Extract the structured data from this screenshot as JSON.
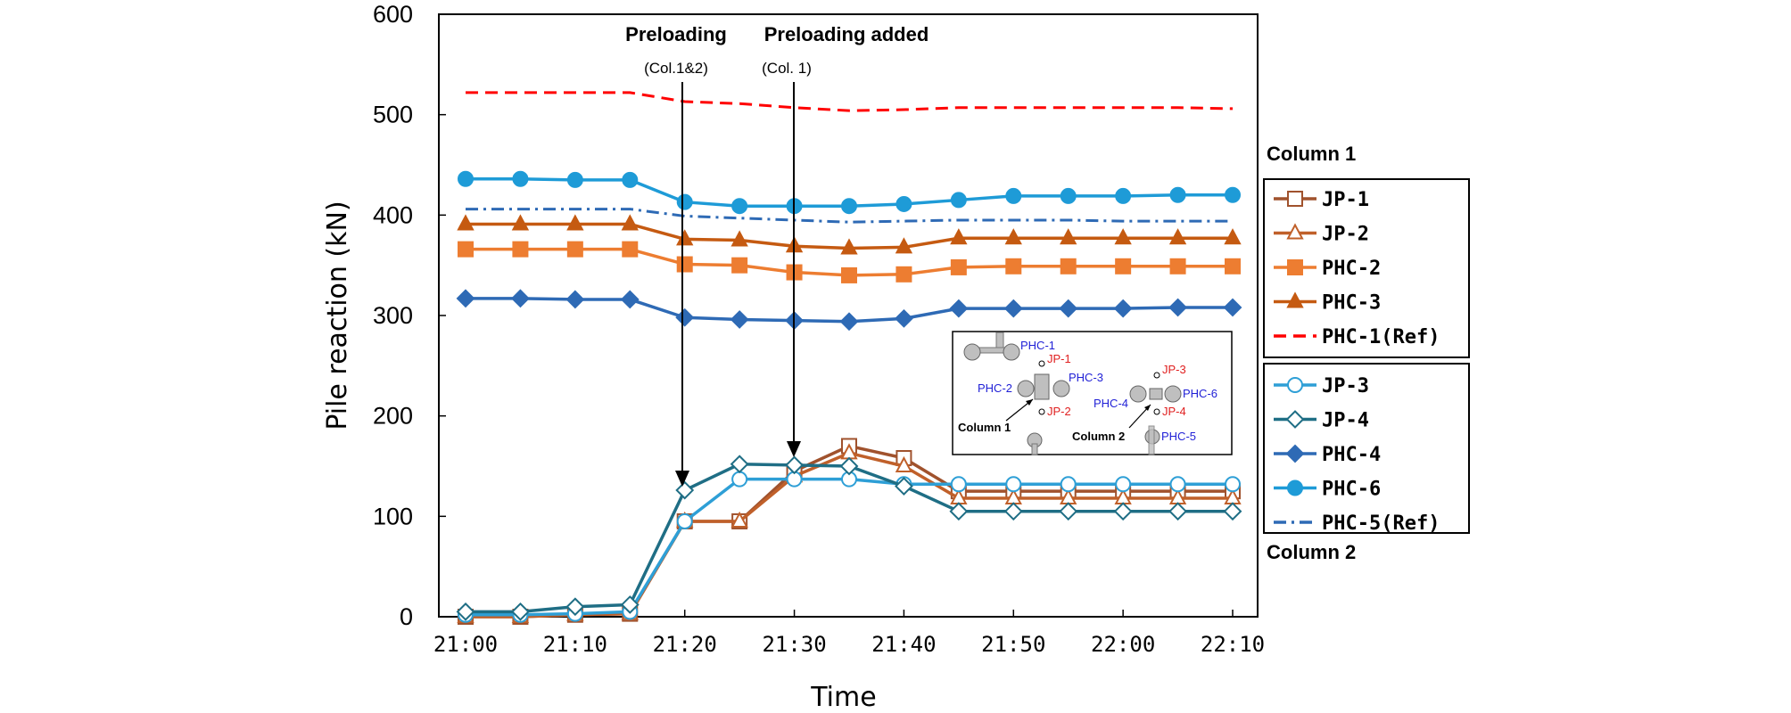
{
  "chart_data": {
    "type": "line",
    "xlabel": "Time",
    "ylabel": "Pile reaction (kN)",
    "ylim": [
      0,
      600
    ],
    "yticks": [
      "0",
      "100",
      "200",
      "300",
      "400",
      "500",
      "600"
    ],
    "xtick_labels": [
      "21:00",
      "21:10",
      "21:20",
      "21:30",
      "21:40",
      "21:50",
      "22:00",
      "22:10"
    ],
    "x": [
      "21:00",
      "21:05",
      "21:10",
      "21:15",
      "21:20",
      "21:25",
      "21:30",
      "21:35",
      "21:40",
      "21:45",
      "21:50",
      "21:55",
      "22:00",
      "22:05",
      "22:10"
    ],
    "grid": false,
    "annotations": [
      {
        "title": "Preloading",
        "subtitle": "(Col.1&2)",
        "time": "21:20",
        "arrow_to": 125
      },
      {
        "title": "Preloading added",
        "subtitle": "(Col. 1)",
        "time": "21:30",
        "arrow_to": 150
      }
    ],
    "legend_groups": [
      {
        "title": "Column 1",
        "items": [
          "JP-1",
          "JP-2",
          "PHC-2",
          "PHC-3",
          "PHC-1(Ref)"
        ]
      },
      {
        "title": "Column 2",
        "items": [
          "JP-3",
          "JP-4",
          "PHC-4",
          "PHC-6",
          "PHC-5(Ref)"
        ]
      }
    ],
    "series": [
      {
        "name": "JP-1",
        "color": "#a0522d",
        "marker": "square-open",
        "line": "solid",
        "values": [
          0,
          0,
          2,
          3,
          95,
          95,
          145,
          170,
          158,
          125,
          125,
          125,
          125,
          125,
          125
        ]
      },
      {
        "name": "JP-2",
        "color": "#c0602a",
        "marker": "triangle-open",
        "line": "solid",
        "values": [
          0,
          0,
          2,
          3,
          95,
          95,
          140,
          163,
          150,
          118,
          118,
          118,
          118,
          118,
          118
        ]
      },
      {
        "name": "PHC-2",
        "color": "#ed7d31",
        "marker": "square",
        "line": "solid",
        "values": [
          366,
          366,
          366,
          366,
          351,
          350,
          343,
          340,
          341,
          348,
          349,
          349,
          349,
          349,
          349
        ]
      },
      {
        "name": "PHC-3",
        "color": "#c55a11",
        "marker": "triangle",
        "line": "solid",
        "values": [
          391,
          391,
          391,
          391,
          376,
          375,
          369,
          367,
          368,
          377,
          377,
          377,
          377,
          377,
          377
        ]
      },
      {
        "name": "PHC-1(Ref)",
        "color": "#ff0000",
        "marker": "none",
        "line": "dash",
        "values": [
          522,
          522,
          522,
          522,
          513,
          511,
          507,
          504,
          505,
          507,
          507,
          507,
          507,
          507,
          506
        ]
      },
      {
        "name": "JP-3",
        "color": "#2e9fd6",
        "marker": "circle-open",
        "line": "solid",
        "values": [
          2,
          2,
          3,
          5,
          95,
          137,
          137,
          137,
          132,
          132,
          132,
          132,
          132,
          132,
          132
        ]
      },
      {
        "name": "JP-4",
        "color": "#1f6e85",
        "marker": "diamond-open",
        "line": "solid",
        "values": [
          5,
          5,
          10,
          12,
          126,
          152,
          151,
          150,
          130,
          105,
          105,
          105,
          105,
          105,
          105
        ]
      },
      {
        "name": "PHC-4",
        "color": "#2e6ab5",
        "marker": "diamond",
        "line": "solid",
        "values": [
          317,
          317,
          316,
          316,
          298,
          296,
          295,
          294,
          297,
          307,
          307,
          307,
          307,
          308,
          308
        ]
      },
      {
        "name": "PHC-6",
        "color": "#1e9bd7",
        "marker": "circle",
        "line": "solid",
        "values": [
          436,
          436,
          435,
          435,
          413,
          409,
          409,
          409,
          411,
          415,
          419,
          419,
          419,
          420,
          420
        ]
      },
      {
        "name": "PHC-5(Ref)",
        "color": "#2e6ab5",
        "marker": "none",
        "line": "dashdot",
        "values": [
          406,
          406,
          406,
          406,
          399,
          397,
          395,
          393,
          394,
          395,
          395,
          395,
          394,
          394,
          394
        ]
      }
    ],
    "inset": {
      "col1_labels": [
        "PHC-1",
        "JP-1",
        "PHC-2",
        "PHC-3",
        "JP-2",
        "Column 1"
      ],
      "col2_labels": [
        "JP-3",
        "PHC-4",
        "PHC-6",
        "JP-4",
        "Column 2",
        "PHC-5"
      ]
    }
  }
}
